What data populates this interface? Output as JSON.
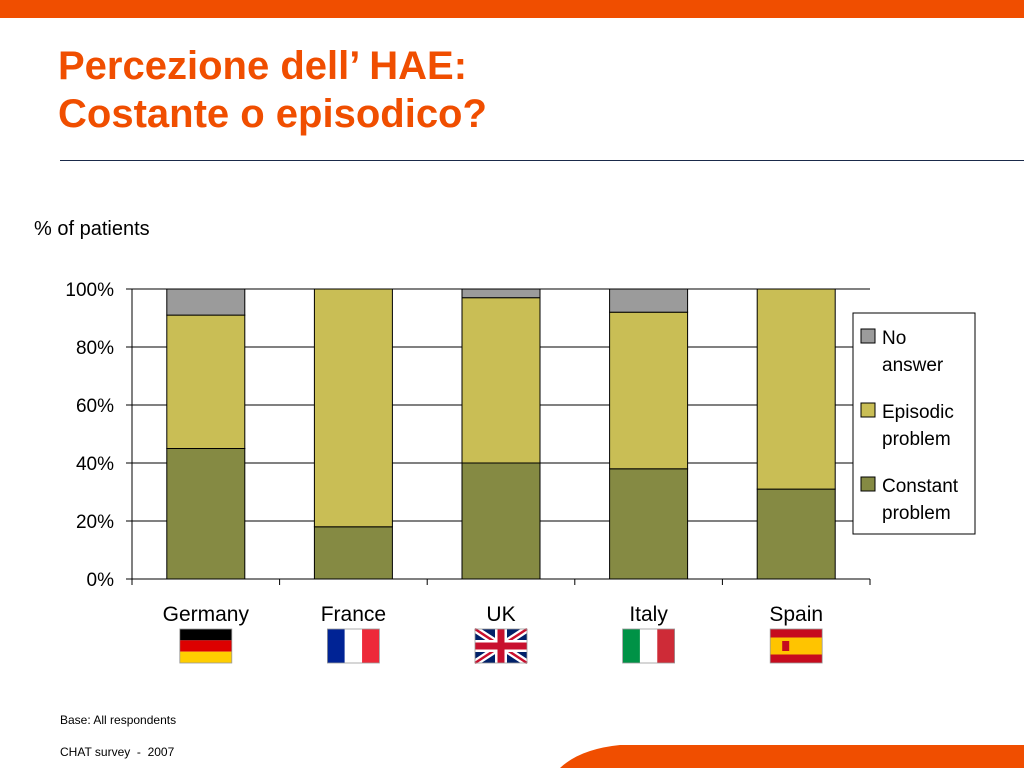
{
  "slide": {
    "title_line1": "Percezione dell’ HAE:",
    "title_line2": "Costante o episodico?",
    "base_note": "Base: All respondents",
    "source": "CHAT survey  -  2007"
  },
  "colors": {
    "accent": "#f04e00",
    "constant": "#858a43",
    "episodic": "#c9be55",
    "no_answer": "#9b9b9b"
  },
  "chart_data": {
    "type": "bar",
    "stacked": true,
    "ylabel": "% of patients",
    "ylim": [
      0,
      100
    ],
    "yticks": [
      "0%",
      "20%",
      "40%",
      "60%",
      "80%",
      "100%"
    ],
    "categories": [
      "Germany",
      "France",
      "UK",
      "Italy",
      "Spain"
    ],
    "series": [
      {
        "name": "Constant problem",
        "color_key": "constant",
        "values": [
          45,
          18,
          40,
          38,
          31
        ]
      },
      {
        "name": "Episodic problem",
        "color_key": "episodic",
        "values": [
          46,
          82,
          57,
          54,
          69
        ]
      },
      {
        "name": "No answer",
        "color_key": "no_answer",
        "values": [
          9,
          0,
          3,
          8,
          0
        ]
      }
    ],
    "legend": {
      "position": "right",
      "order": [
        2,
        1,
        0
      ],
      "entries": [
        {
          "lines": [
            "No",
            "answer"
          ]
        },
        {
          "lines": [
            "Episodic",
            "problem"
          ]
        },
        {
          "lines": [
            "Constant",
            "problem"
          ]
        }
      ]
    },
    "flags": [
      "germany-flag",
      "france-flag",
      "uk-flag",
      "italy-flag",
      "spain-flag"
    ],
    "grid": true
  }
}
